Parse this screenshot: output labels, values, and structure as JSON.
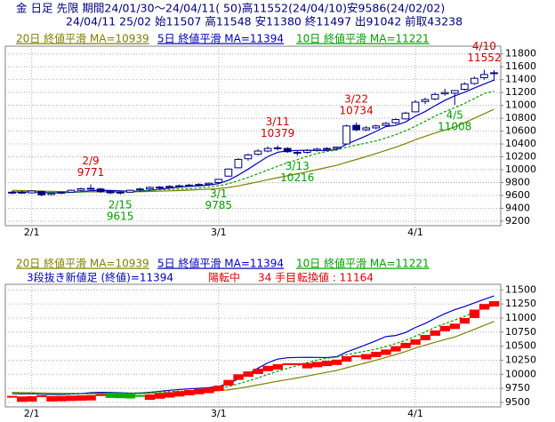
{
  "chart_data": [
    {
      "type": "candlestick",
      "title": "金 日足 先限 期間24/01/30～24/04/11( 50)高11552(24/04/10)安9586(24/02/02)",
      "subtitle": "24/04/11 25/02 始11507 高11548 安11380 終11497 出91042 前取43238",
      "categories": [
        null,
        null,
        "2/1",
        null,
        null,
        null,
        null,
        null,
        null,
        null,
        null,
        null,
        null,
        null,
        null,
        null,
        null,
        null,
        null,
        null,
        null,
        "3/1",
        null,
        null,
        null,
        null,
        null,
        null,
        null,
        null,
        null,
        null,
        null,
        null,
        null,
        null,
        null,
        null,
        null,
        null,
        null,
        "4/1",
        null,
        null,
        null,
        null,
        null,
        null,
        null,
        null
      ],
      "open": [
        9640,
        9650,
        9640,
        9660,
        9615,
        9635,
        9650,
        9680,
        9710,
        9700,
        9660,
        9640,
        9650,
        9690,
        9700,
        9720,
        9730,
        9745,
        9750,
        9760,
        9770,
        9800,
        9900,
        10030,
        10170,
        10240,
        10290,
        10330,
        10330,
        10270,
        10270,
        10300,
        10320,
        10330,
        10400,
        10690,
        10620,
        10650,
        10690,
        10730,
        10790,
        10900,
        11060,
        11100,
        11180,
        11190,
        11250,
        11340,
        11430,
        11507
      ],
      "high": [
        9665,
        9670,
        9680,
        9675,
        9650,
        9660,
        9690,
        9720,
        9771,
        9720,
        9680,
        9665,
        9690,
        9720,
        9740,
        9745,
        9760,
        9770,
        9780,
        9790,
        9800,
        9860,
        10020,
        10180,
        10250,
        10320,
        10360,
        10379,
        10350,
        10300,
        10320,
        10340,
        10350,
        10360,
        10700,
        10734,
        10680,
        10700,
        10740,
        10800,
        10900,
        11080,
        11120,
        11200,
        11260,
        11240,
        11360,
        11450,
        11552,
        11548
      ],
      "low": [
        9620,
        9625,
        9630,
        9586,
        9600,
        9620,
        9640,
        9660,
        9690,
        9640,
        9620,
        9615,
        9640,
        9670,
        9690,
        9700,
        9710,
        9730,
        9735,
        9740,
        9750,
        9785,
        9890,
        10020,
        10140,
        10220,
        10270,
        10300,
        10260,
        10216,
        10250,
        10280,
        10300,
        10310,
        10390,
        10600,
        10600,
        10630,
        10670,
        10710,
        10780,
        10890,
        11020,
        11080,
        11150,
        11008,
        11230,
        11320,
        11400,
        11380
      ],
      "close": [
        9650,
        9640,
        9670,
        9610,
        9635,
        9650,
        9680,
        9705,
        9700,
        9660,
        9640,
        9650,
        9680,
        9700,
        9725,
        9730,
        9740,
        9750,
        9760,
        9770,
        9790,
        9850,
        10010,
        10160,
        10230,
        10290,
        10330,
        10340,
        10280,
        10260,
        10300,
        10320,
        10330,
        10350,
        10680,
        10620,
        10650,
        10680,
        10720,
        10780,
        10880,
        11050,
        11090,
        11170,
        11200,
        11230,
        11330,
        11420,
        11480,
        11497
      ],
      "up_color": "#ffffff",
      "down_color": "#000080",
      "edge_color": "#000080",
      "series": [
        {
          "name": "20日 終値平滑 MA=10939",
          "color": "#808000",
          "dash": false,
          "values": [
            9680,
            9676,
            9672,
            9668,
            9664,
            9661,
            9659,
            9657,
            9656,
            9655,
            9654,
            9654,
            9655,
            9658,
            9662,
            9666,
            9671,
            9676,
            9682,
            9690,
            9697,
            9707,
            9724,
            9749,
            9779,
            9811,
            9844,
            9876,
            9905,
            9935,
            9968,
            10002,
            10035,
            10068,
            10115,
            10159,
            10204,
            10251,
            10299,
            10350,
            10405,
            10465,
            10519,
            10569,
            10617,
            10663,
            10730,
            10800,
            10870,
            10939
          ]
        },
        {
          "name": "5日 終値平滑 MA=11394",
          "color": "#0000c0",
          "dash": false,
          "values": [
            9655,
            9650,
            9655,
            9645,
            9641,
            9641,
            9649,
            9656,
            9674,
            9679,
            9677,
            9671,
            9666,
            9666,
            9679,
            9697,
            9715,
            9729,
            9741,
            9750,
            9762,
            9784,
            9836,
            9916,
            10008,
            10108,
            10204,
            10270,
            10294,
            10300,
            10302,
            10300,
            10298,
            10312,
            10396,
            10460,
            10526,
            10596,
            10670,
            10690,
            10742,
            10832,
            10904,
            10994,
            11078,
            11148,
            11204,
            11270,
            11332,
            11394
          ]
        },
        {
          "name": "10日 終値平滑 MA=11221",
          "color": "#00a000",
          "dash": true,
          "values": [
            9660,
            9658,
            9657,
            9652,
            9648,
            9648,
            9650,
            9652,
            9660,
            9660,
            9659,
            9660,
            9661,
            9670,
            9679,
            9687,
            9693,
            9698,
            9704,
            9715,
            9730,
            9750,
            9783,
            9829,
            9880,
            9936,
            9995,
            10054,
            10106,
            10155,
            10206,
            10253,
            10285,
            10304,
            10349,
            10382,
            10414,
            10448,
            10492,
            10545,
            10603,
            10676,
            10752,
            10834,
            10902,
            10963,
            11031,
            11108,
            11184,
            11221
          ]
        }
      ],
      "annotations": [
        {
          "label": "2/9",
          "value": 9771,
          "color": "#d00000"
        },
        {
          "label": "2/15",
          "value": 9615,
          "color": "#00a000"
        },
        {
          "label": "3/1",
          "value": 9785,
          "color": "#00a000"
        },
        {
          "label": "3/11",
          "value": 10379,
          "color": "#d00000"
        },
        {
          "label": "3/13",
          "value": 10216,
          "color": "#00a000"
        },
        {
          "label": "3/22",
          "value": 10734,
          "color": "#d00000"
        },
        {
          "label": "4/5",
          "value": 11008,
          "color": "#00a000"
        },
        {
          "label": "4/10",
          "value": 11552,
          "color": "#d00000"
        }
      ],
      "ylim": [
        9130,
        11920
      ],
      "yticks": [
        9200,
        9400,
        9600,
        9800,
        10000,
        10200,
        10400,
        10600,
        10800,
        11000,
        11200,
        11400,
        11600,
        11800
      ],
      "grid": true
    },
    {
      "type": "line_break",
      "series": [
        {
          "name": "20日 終値平滑 MA=10939",
          "color": "#808000"
        },
        {
          "name": "5日 終値平滑 MA=11394",
          "color": "#0000c0"
        },
        {
          "name": "10日 終値平滑 MA=11221",
          "color": "#00a000"
        }
      ],
      "info": [
        {
          "text": "3段抜き新値足 (終値)=11394",
          "color": "#0000c0"
        },
        {
          "text": "陽転中",
          "color": "#e00000"
        },
        {
          "text": "34 手目",
          "color": "#e00000"
        },
        {
          "text": "転換値 : 11164",
          "color": "#e00000"
        }
      ],
      "categories": [
        null,
        null,
        "2/1",
        null,
        null,
        null,
        null,
        null,
        null,
        null,
        null,
        null,
        null,
        null,
        null,
        null,
        null,
        null,
        null,
        null,
        null,
        "3/1",
        null,
        null,
        null,
        null,
        null,
        null,
        null,
        null,
        null,
        null,
        null,
        null,
        null,
        null,
        null,
        null,
        null,
        null,
        null,
        "4/1",
        null,
        null,
        null,
        null,
        null,
        null,
        null,
        null
      ],
      "values": [
        9600,
        9605,
        9610,
        9610,
        9612,
        9615,
        9620,
        9625,
        9630,
        9630,
        9625,
        9620,
        9615,
        9615,
        9640,
        9660,
        9680,
        9700,
        9720,
        9740,
        9760,
        9800,
        9900,
        10000,
        10050,
        10100,
        10150,
        10180,
        10180,
        10180,
        10200,
        10220,
        10240,
        10260,
        10320,
        10320,
        10360,
        10400,
        10440,
        10500,
        10560,
        10620,
        10700,
        10780,
        10860,
        10900,
        11000,
        11150,
        11250,
        11300
      ],
      "up_color": "#ff0000",
      "down_color": "#00b000",
      "ylim": [
        9420,
        11600
      ],
      "yticks": [
        9500,
        9750,
        10000,
        10250,
        10500,
        10750,
        11000,
        11250,
        11500
      ],
      "grid": true
    }
  ]
}
